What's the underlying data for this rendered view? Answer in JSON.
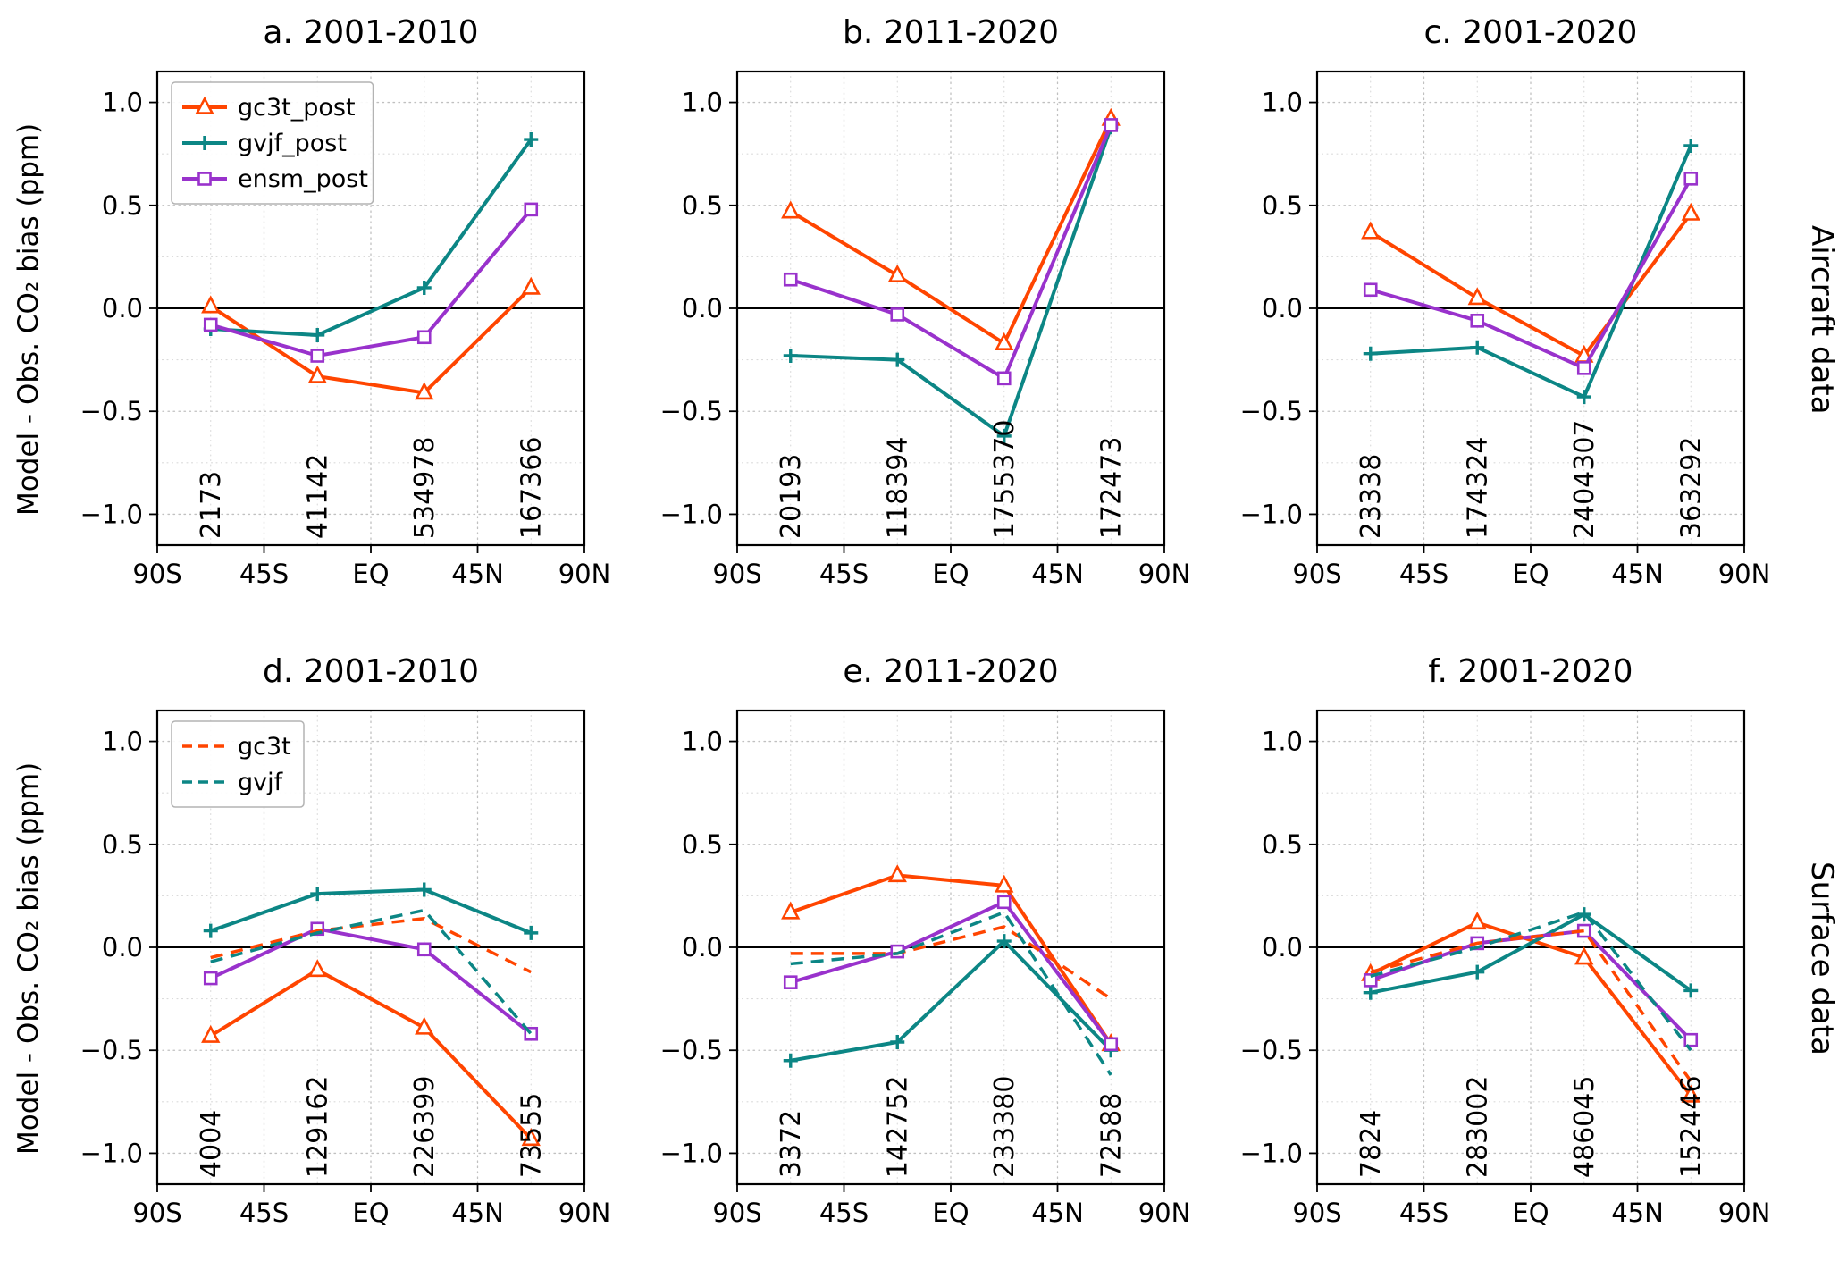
{
  "figure": {
    "ylabel": "Model - Obs. CO₂ bias (ppm)",
    "row_labels": [
      "Aircraft data",
      "Surface data"
    ],
    "colors": {
      "gc3t": "#FF4500",
      "gvjf": "#0C8685",
      "ensm": "#9932CC",
      "counts": "#DC143C"
    }
  },
  "chart_data": [
    {
      "id": "a",
      "type": "line",
      "title": "a. 2001-2010",
      "x": [
        -67.5,
        -22.5,
        22.5,
        67.5
      ],
      "xticks": {
        "values": [
          -90,
          -45,
          0,
          45,
          90
        ],
        "labels": [
          "90S",
          "45S",
          "EQ",
          "45N",
          "90N"
        ]
      },
      "yticks": [
        -1.0,
        -0.5,
        0.0,
        0.5,
        1.0
      ],
      "xlim": [
        -90,
        90
      ],
      "ylim": [
        -1.15,
        1.15
      ],
      "series": [
        {
          "name": "gc3t_post",
          "color": "#FF4500",
          "style": "solid",
          "marker": "triangle",
          "values": [
            0.01,
            -0.33,
            -0.41,
            0.1
          ]
        },
        {
          "name": "gvjf_post",
          "color": "#0C8685",
          "style": "solid",
          "marker": "plus",
          "values": [
            -0.1,
            -0.13,
            0.1,
            0.82
          ]
        },
        {
          "name": "ensm_post",
          "color": "#9932CC",
          "style": "solid",
          "marker": "square",
          "values": [
            -0.08,
            -0.23,
            -0.14,
            0.48
          ]
        }
      ],
      "counts": [
        "2173",
        "41142",
        "534978",
        "167366"
      ],
      "legend": [
        0,
        1,
        2
      ]
    },
    {
      "id": "b",
      "type": "line",
      "title": "b. 2011-2020",
      "x": [
        -67.5,
        -22.5,
        22.5,
        67.5
      ],
      "xticks": {
        "values": [
          -90,
          -45,
          0,
          45,
          90
        ],
        "labels": [
          "90S",
          "45S",
          "EQ",
          "45N",
          "90N"
        ]
      },
      "yticks": [
        -1.0,
        -0.5,
        0.0,
        0.5,
        1.0
      ],
      "xlim": [
        -90,
        90
      ],
      "ylim": [
        -1.15,
        1.15
      ],
      "series": [
        {
          "name": "gc3t_post",
          "color": "#FF4500",
          "style": "solid",
          "marker": "triangle",
          "values": [
            0.47,
            0.16,
            -0.17,
            0.92
          ]
        },
        {
          "name": "gvjf_post",
          "color": "#0C8685",
          "style": "solid",
          "marker": "plus",
          "values": [
            -0.23,
            -0.25,
            -0.62,
            0.88
          ]
        },
        {
          "name": "ensm_post",
          "color": "#9932CC",
          "style": "solid",
          "marker": "square",
          "values": [
            0.14,
            -0.03,
            -0.34,
            0.89
          ]
        }
      ],
      "counts": [
        "20193",
        "118394",
        "1755370",
        "172473"
      ]
    },
    {
      "id": "c",
      "type": "line",
      "title": "c. 2001-2020",
      "x": [
        -67.5,
        -22.5,
        22.5,
        67.5
      ],
      "xticks": {
        "values": [
          -90,
          -45,
          0,
          45,
          90
        ],
        "labels": [
          "90S",
          "45S",
          "EQ",
          "45N",
          "90N"
        ]
      },
      "yticks": [
        -1.0,
        -0.5,
        0.0,
        0.5,
        1.0
      ],
      "xlim": [
        -90,
        90
      ],
      "ylim": [
        -1.15,
        1.15
      ],
      "series": [
        {
          "name": "gc3t_post",
          "color": "#FF4500",
          "style": "solid",
          "marker": "triangle",
          "values": [
            0.37,
            0.05,
            -0.23,
            0.46
          ]
        },
        {
          "name": "gvjf_post",
          "color": "#0C8685",
          "style": "solid",
          "marker": "plus",
          "values": [
            -0.22,
            -0.19,
            -0.43,
            0.79
          ]
        },
        {
          "name": "ensm_post",
          "color": "#9932CC",
          "style": "solid",
          "marker": "square",
          "values": [
            0.09,
            -0.06,
            -0.29,
            0.63
          ]
        }
      ],
      "counts": [
        "23338",
        "174324",
        "2404307",
        "363292"
      ]
    },
    {
      "id": "d",
      "type": "line",
      "title": "d. 2001-2010",
      "x": [
        -67.5,
        -22.5,
        22.5,
        67.5
      ],
      "xticks": {
        "values": [
          -90,
          -45,
          0,
          45,
          90
        ],
        "labels": [
          "90S",
          "45S",
          "EQ",
          "45N",
          "90N"
        ]
      },
      "yticks": [
        -1.0,
        -0.5,
        0.0,
        0.5,
        1.0
      ],
      "xlim": [
        -90,
        90
      ],
      "ylim": [
        -1.15,
        1.15
      ],
      "series": [
        {
          "name": "gc3t_post",
          "color": "#FF4500",
          "style": "solid",
          "marker": "triangle",
          "values": [
            -0.43,
            -0.11,
            -0.39,
            -0.93
          ]
        },
        {
          "name": "gvjf_post",
          "color": "#0C8685",
          "style": "solid",
          "marker": "plus",
          "values": [
            0.08,
            0.26,
            0.28,
            0.07
          ]
        },
        {
          "name": "ensm_post",
          "color": "#9932CC",
          "style": "solid",
          "marker": "square",
          "values": [
            -0.15,
            0.09,
            -0.01,
            -0.42
          ]
        },
        {
          "name": "gc3t",
          "color": "#FF4500",
          "style": "dashed",
          "marker": "none",
          "values": [
            -0.05,
            0.08,
            0.14,
            -0.12
          ]
        },
        {
          "name": "gvjf",
          "color": "#0C8685",
          "style": "dashed",
          "marker": "none",
          "values": [
            -0.07,
            0.07,
            0.18,
            -0.42
          ]
        }
      ],
      "counts": [
        "4004",
        "129162",
        "226399",
        "73555"
      ],
      "legend": [
        3,
        4
      ]
    },
    {
      "id": "e",
      "type": "line",
      "title": "e. 2011-2020",
      "x": [
        -67.5,
        -22.5,
        22.5,
        67.5
      ],
      "xticks": {
        "values": [
          -90,
          -45,
          0,
          45,
          90
        ],
        "labels": [
          "90S",
          "45S",
          "EQ",
          "45N",
          "90N"
        ]
      },
      "yticks": [
        -1.0,
        -0.5,
        0.0,
        0.5,
        1.0
      ],
      "xlim": [
        -90,
        90
      ],
      "ylim": [
        -1.15,
        1.15
      ],
      "series": [
        {
          "name": "gc3t_post",
          "color": "#FF4500",
          "style": "solid",
          "marker": "triangle",
          "values": [
            0.17,
            0.35,
            0.3,
            -0.47
          ]
        },
        {
          "name": "gvjf_post",
          "color": "#0C8685",
          "style": "solid",
          "marker": "plus",
          "values": [
            -0.55,
            -0.46,
            0.03,
            -0.5
          ]
        },
        {
          "name": "ensm_post",
          "color": "#9932CC",
          "style": "solid",
          "marker": "square",
          "values": [
            -0.17,
            -0.02,
            0.22,
            -0.47
          ]
        },
        {
          "name": "gc3t",
          "color": "#FF4500",
          "style": "dashed",
          "marker": "none",
          "values": [
            -0.03,
            -0.03,
            0.1,
            -0.25
          ]
        },
        {
          "name": "gvjf",
          "color": "#0C8685",
          "style": "dashed",
          "marker": "none",
          "values": [
            -0.08,
            -0.03,
            0.17,
            -0.62
          ]
        }
      ],
      "counts": [
        "3372",
        "142752",
        "233380",
        "72588"
      ]
    },
    {
      "id": "f",
      "type": "line",
      "title": "f. 2001-2020",
      "x": [
        -67.5,
        -22.5,
        22.5,
        67.5
      ],
      "xticks": {
        "values": [
          -90,
          -45,
          0,
          45,
          90
        ],
        "labels": [
          "90S",
          "45S",
          "EQ",
          "45N",
          "90N"
        ]
      },
      "yticks": [
        -1.0,
        -0.5,
        0.0,
        0.5,
        1.0
      ],
      "xlim": [
        -90,
        90
      ],
      "ylim": [
        -1.15,
        1.15
      ],
      "series": [
        {
          "name": "gc3t_post",
          "color": "#FF4500",
          "style": "solid",
          "marker": "triangle",
          "values": [
            -0.13,
            0.12,
            -0.05,
            -0.72
          ]
        },
        {
          "name": "gvjf_post",
          "color": "#0C8685",
          "style": "solid",
          "marker": "plus",
          "values": [
            -0.22,
            -0.12,
            0.16,
            -0.21
          ]
        },
        {
          "name": "ensm_post",
          "color": "#9932CC",
          "style": "solid",
          "marker": "square",
          "values": [
            -0.16,
            0.02,
            0.08,
            -0.45
          ]
        },
        {
          "name": "gc3t",
          "color": "#FF4500",
          "style": "dashed",
          "marker": "none",
          "values": [
            -0.12,
            0.02,
            0.08,
            -0.65
          ]
        },
        {
          "name": "gvjf",
          "color": "#0C8685",
          "style": "dashed",
          "marker": "none",
          "values": [
            -0.14,
            0.0,
            0.17,
            -0.5
          ]
        }
      ],
      "counts": [
        "7824",
        "283002",
        "486045",
        "152446"
      ]
    }
  ]
}
